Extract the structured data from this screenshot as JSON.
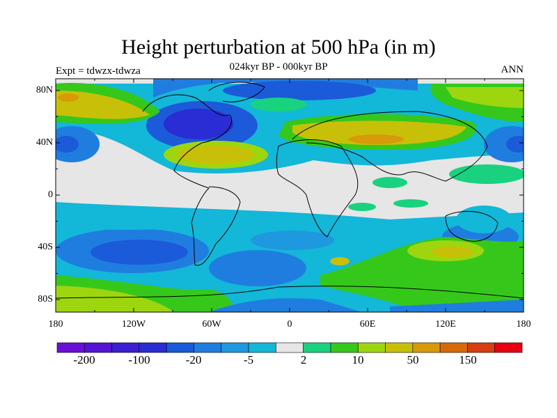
{
  "title": "Height perturbation at 500 hPa (in m)",
  "subtitle": "024kyr BP - 000kyr BP",
  "expt_label": "Expt = tdwzx-tdwza",
  "season": "ANN",
  "lat_labels": [
    "80N",
    "40N",
    "0",
    "40S",
    "80S"
  ],
  "lon_labels": [
    "180",
    "120W",
    "60W",
    "0",
    "60E",
    "120E",
    "180"
  ],
  "colorbar": {
    "labels": [
      "-200",
      "-100",
      "-20",
      "-5",
      "2",
      "10",
      "50",
      "150"
    ],
    "colors": [
      "#6a0fd6",
      "#5414d4",
      "#3b1fd1",
      "#2a2cd4",
      "#1b5ad8",
      "#1f7de0",
      "#1e98df",
      "#13b7d8",
      "#e6e6e6",
      "#18d27f",
      "#35c81b",
      "#9dd60f",
      "#c8c008",
      "#d89a08",
      "#d66a08",
      "#d83c12",
      "#e60010"
    ]
  },
  "colors": {
    "frame": "#000000",
    "neutral": "#e6e6e6"
  }
}
